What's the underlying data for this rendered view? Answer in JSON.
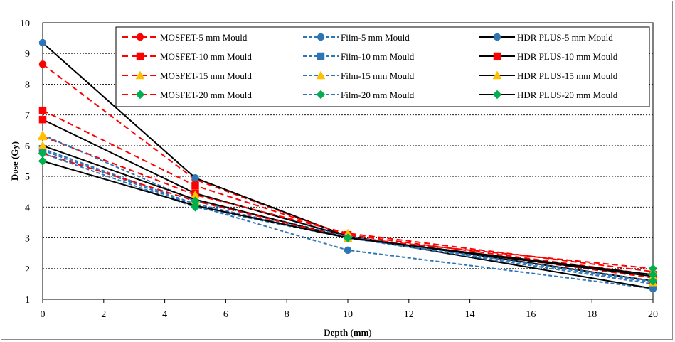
{
  "chart_data": {
    "type": "line",
    "title": "",
    "xlabel": "Depth (mm)",
    "ylabel": "Dose (Gy)",
    "xlim": [
      0,
      20
    ],
    "ylim": [
      1,
      10
    ],
    "xticks": [
      "0",
      "2",
      "4",
      "6",
      "8",
      "10",
      "12",
      "14",
      "16",
      "18",
      "20"
    ],
    "yticks": [
      "1",
      "2",
      "3",
      "4",
      "5",
      "6",
      "7",
      "8",
      "9",
      "10"
    ],
    "grid": "horizontal dashed",
    "legend_position": "top-right",
    "x": [
      0,
      5,
      10,
      20
    ],
    "series": [
      {
        "name": "MOSFET-5 mm Mould",
        "values": [
          8.65,
          4.9,
          3.05,
          1.7
        ],
        "color": "#ff0000",
        "dash": "dashed",
        "marker": "circle"
      },
      {
        "name": "Film-5 mm Mould",
        "values": [
          5.85,
          4.05,
          2.6,
          1.35
        ],
        "color": "#2e75b6",
        "dash": "dashed",
        "marker": "circle"
      },
      {
        "name": "HDR PLUS-5 mm Mould",
        "values": [
          9.35,
          4.95,
          3.05,
          1.35
        ],
        "color": "#000000",
        "dash": "solid",
        "marker": "circle",
        "marker_color": "#2e75b6"
      },
      {
        "name": "MOSFET-10 mm Mould",
        "values": [
          7.15,
          4.7,
          3.1,
          1.8
        ],
        "color": "#ff0000",
        "dash": "dashed",
        "marker": "square"
      },
      {
        "name": "Film-10 mm Mould",
        "values": [
          5.9,
          4.1,
          3.0,
          1.5
        ],
        "color": "#2e75b6",
        "dash": "dashed",
        "marker": "square"
      },
      {
        "name": "HDR PLUS-10 mm Mould",
        "values": [
          6.85,
          4.45,
          3.05,
          1.6
        ],
        "color": "#000000",
        "dash": "solid",
        "marker": "square",
        "marker_color": "#ff0000"
      },
      {
        "name": "MOSFET-15 mm Mould",
        "values": [
          6.3,
          4.4,
          3.15,
          1.9
        ],
        "color": "#ff0000",
        "dash": "dashed",
        "marker": "triangle",
        "marker_color": "#ffc000"
      },
      {
        "name": "Film-15 mm Mould",
        "values": [
          6.35,
          4.2,
          3.05,
          1.55
        ],
        "color": "#2e75b6",
        "dash": "dashed",
        "marker": "triangle",
        "marker_color": "#ffc000"
      },
      {
        "name": "HDR PLUS-15 mm Mould",
        "values": [
          6.0,
          4.25,
          3.0,
          1.75
        ],
        "color": "#000000",
        "dash": "solid",
        "marker": "triangle",
        "marker_color": "#ffc000"
      },
      {
        "name": "MOSFET-20 mm Mould",
        "values": [
          5.75,
          4.2,
          3.0,
          2.0
        ],
        "color": "#ff0000",
        "dash": "dashed",
        "marker": "diamond",
        "marker_color": "#00b050"
      },
      {
        "name": "Film-20 mm Mould",
        "values": [
          5.75,
          4.0,
          3.0,
          1.6
        ],
        "color": "#2e75b6",
        "dash": "dashed",
        "marker": "diamond",
        "marker_color": "#00b050"
      },
      {
        "name": "HDR PLUS-20 mm Mould",
        "values": [
          5.5,
          4.05,
          3.0,
          1.8
        ],
        "color": "#000000",
        "dash": "solid",
        "marker": "diamond",
        "marker_color": "#00b050"
      }
    ]
  }
}
